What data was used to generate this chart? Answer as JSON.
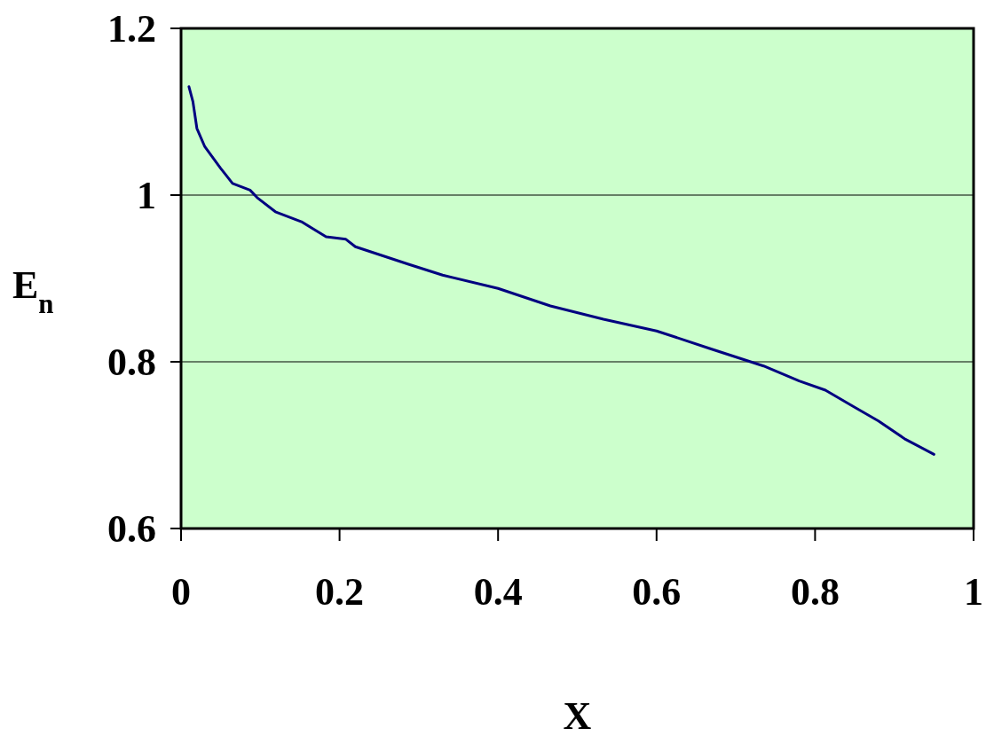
{
  "chart_data": {
    "type": "line",
    "xlabel": "X",
    "ylabel": "E$_{n}$",
    "x": [
      0.01,
      0.015,
      0.02,
      0.03,
      0.05,
      0.065,
      0.087,
      0.096,
      0.119,
      0.152,
      0.183,
      0.208,
      0.22,
      0.287,
      0.33,
      0.4,
      0.466,
      0.533,
      0.6,
      0.667,
      0.735,
      0.78,
      0.813,
      0.847,
      0.88,
      0.914,
      0.95
    ],
    "series": [
      {
        "color": "#000080",
        "values": [
          1.13,
          1.112,
          1.08,
          1.058,
          1.032,
          1.014,
          1.006,
          0.997,
          0.98,
          0.968,
          0.95,
          0.947,
          0.938,
          0.917,
          0.904,
          0.888,
          0.867,
          0.851,
          0.837,
          0.816,
          0.795,
          0.777,
          0.766,
          0.747,
          0.729,
          0.707,
          0.689
        ]
      }
    ],
    "xlim": [
      0,
      1
    ],
    "xticks": [
      0,
      0.2,
      0.4,
      0.6,
      0.8,
      1
    ],
    "ylim": [
      0.6,
      1.2
    ],
    "yticks": [
      0.6,
      0.8,
      1,
      1.2
    ],
    "grid": "y",
    "marker": "none",
    "line_style": "solid"
  }
}
